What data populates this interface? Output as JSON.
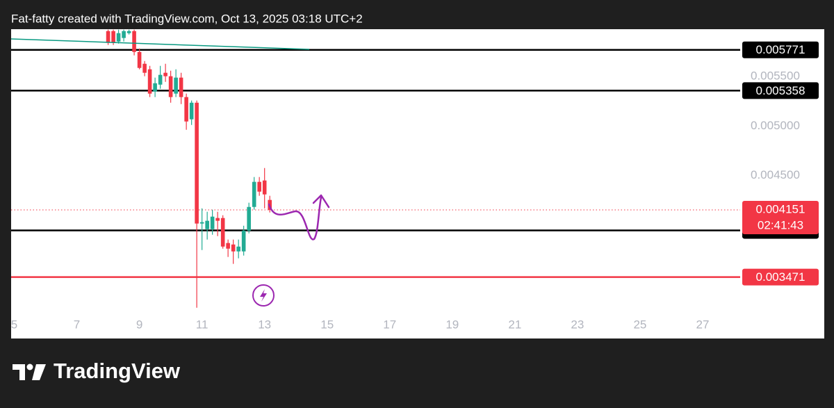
{
  "chart_data": {
    "type": "candlestick",
    "title": "Fat-fatty created with TradingView.com, Oct 13, 2025 03:18 UTC+2",
    "watermark": "TradingView",
    "x": [
      8,
      8.167,
      8.333,
      8.5,
      8.667,
      8.833,
      9,
      9.167,
      9.333,
      9.5,
      9.667,
      9.833,
      10,
      10.167,
      10.333,
      10.5,
      10.667,
      10.833,
      11,
      11.167,
      11.333,
      11.5,
      11.667,
      11.833,
      12,
      12.167,
      12.333,
      12.5,
      12.667,
      12.833,
      13,
      13.167
    ],
    "open": [
      0.005961,
      0.005961,
      0.005855,
      0.005891,
      0.00594,
      0.005961,
      0.00575,
      0.00563,
      0.005574,
      0.005349,
      0.005419,
      0.005539,
      0.005504,
      0.005328,
      0.00549,
      0.005293,
      0.005068,
      0.005236,
      0.004013,
      0.003956,
      0.003956,
      0.004069,
      0.004069,
      0.003816,
      0.003801,
      0.003731,
      0.003731,
      0.003942,
      0.004181,
      0.004435,
      0.004449,
      0.004252
    ],
    "high": [
      0.005975,
      0.005975,
      0.005975,
      0.005975,
      0.005975,
      0.005975,
      0.005785,
      0.005658,
      0.005609,
      0.00549,
      0.005609,
      0.00563,
      0.00556,
      0.005574,
      0.005539,
      0.005328,
      0.005258,
      0.005258,
      0.004167,
      0.004132,
      0.004153,
      0.004132,
      0.004097,
      0.003851,
      0.003851,
      0.003851,
      0.003991,
      0.004224,
      0.004484,
      0.004484,
      0.004575,
      0.004294
    ],
    "low": [
      0.00582,
      0.00582,
      0.005834,
      0.005855,
      0.005926,
      0.005715,
      0.005574,
      0.005504,
      0.005293,
      0.005293,
      0.005377,
      0.005447,
      0.005236,
      0.005293,
      0.005222,
      0.004962,
      0.005011,
      0.003161,
      0.003745,
      0.003851,
      0.0039,
      0.003886,
      0.003759,
      0.003675,
      0.003605,
      0.003661,
      0.003689,
      0.003914,
      0.004153,
      0.004294,
      0.004167,
      0.004125
    ],
    "close": [
      0.005841,
      0.005841,
      0.00594,
      0.005961,
      0.005961,
      0.00575,
      0.005588,
      0.005539,
      0.005328,
      0.005433,
      0.005518,
      0.005504,
      0.005293,
      0.00549,
      0.005293,
      0.005046,
      0.005236,
      0.004013,
      0.004027,
      0.004041,
      0.004083,
      0.004041,
      0.00378,
      0.003759,
      0.003731,
      0.00378,
      0.003942,
      0.004181,
      0.004435,
      0.004336,
      0.004308,
      0.004151
    ],
    "up_color": "#22ab94",
    "down_color": "#f23645",
    "xlim": [
      4.9,
      28.2
    ],
    "xticks": [
      5,
      7,
      9,
      11,
      13,
      15,
      17,
      19,
      21,
      23,
      25,
      27
    ],
    "ylim": [
      0.00311,
      0.00598
    ],
    "yticks": [
      {
        "value": 0.0055,
        "label": "0.005500"
      },
      {
        "value": 0.005,
        "label": "0.005000"
      },
      {
        "value": 0.0045,
        "label": "0.004500"
      }
    ],
    "grid": false,
    "levels": [
      {
        "value": 0.005771,
        "color": "#000000"
      },
      {
        "value": 0.005358,
        "color": "#000000"
      },
      {
        "value": 0.003944,
        "color": "#000000"
      },
      {
        "value": 0.003471,
        "color": "#f23645"
      }
    ],
    "current_price": {
      "value": 0.004151,
      "countdown": "02:41:43",
      "color": "#f23645"
    }
  }
}
